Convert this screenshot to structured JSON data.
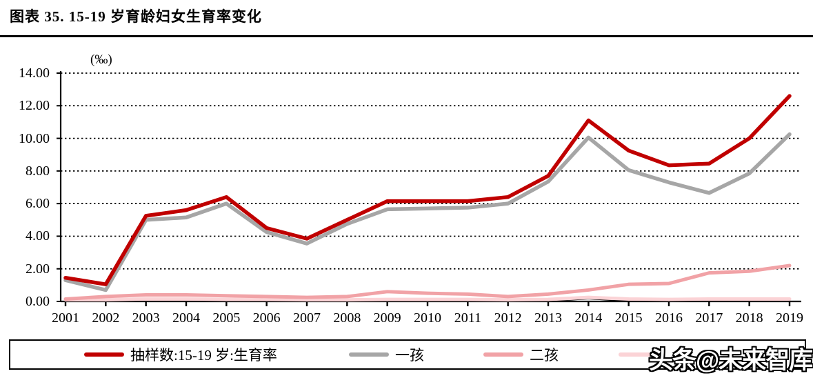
{
  "header": {
    "title": "图表 35. 15-19 岁育龄妇女生育率变化"
  },
  "watermark": {
    "text": "头条@未来智库"
  },
  "chart_data": {
    "type": "line",
    "title": "图表 35. 15-19 岁育龄妇女生育率变化",
    "unit_label": "(‰)",
    "ylim": [
      0,
      14
    ],
    "yticks": [
      0,
      2,
      4,
      6,
      8,
      10,
      12,
      14
    ],
    "ytick_labels": [
      "0.00",
      "2.00",
      "4.00",
      "6.00",
      "8.00",
      "10.00",
      "12.00",
      "14.00"
    ],
    "grid": "horizontal-dotted",
    "legend_position": "bottom-box",
    "x": [
      2001,
      2002,
      2003,
      2004,
      2005,
      2006,
      2007,
      2008,
      2009,
      2010,
      2011,
      2012,
      2013,
      2014,
      2015,
      2016,
      2017,
      2018,
      2019
    ],
    "series": [
      {
        "name": "抽样数:15-19 岁:生育率",
        "color": "#C00000",
        "values": [
          1.45,
          1.05,
          5.25,
          5.6,
          6.4,
          4.5,
          3.85,
          5.0,
          6.15,
          6.15,
          6.15,
          6.4,
          7.7,
          11.1,
          9.25,
          8.35,
          8.45,
          10.0,
          12.6
        ]
      },
      {
        "name": "一孩",
        "color": "#A6A6A6",
        "values": [
          1.3,
          0.7,
          5.0,
          5.15,
          6.0,
          4.25,
          3.55,
          4.75,
          5.65,
          5.7,
          5.75,
          6.0,
          7.35,
          10.05,
          8.05,
          7.3,
          6.65,
          7.85,
          10.25
        ]
      },
      {
        "name": "二孩",
        "color": "#F1A2A6",
        "values": [
          0.15,
          0.3,
          0.4,
          0.4,
          0.35,
          0.3,
          0.25,
          0.3,
          0.6,
          0.5,
          0.45,
          0.3,
          0.45,
          0.7,
          1.05,
          1.1,
          1.75,
          1.85,
          2.2
        ]
      },
      {
        "name": "",
        "label_obscured_by_watermark": true,
        "color": "#FBD3D6",
        "values": [
          0.1,
          0.1,
          0.15,
          0.15,
          0.12,
          0.12,
          0.1,
          0.1,
          0.12,
          0.12,
          0.12,
          0.1,
          0.12,
          0.25,
          0.15,
          0.12,
          0.15,
          0.15,
          0.15
        ]
      },
      {
        "name": "",
        "label_obscured_by_watermark": true,
        "color": "#000000",
        "values": [
          0.02,
          0.02,
          0.05,
          0.1,
          0.05,
          0.02,
          0.02,
          0.02,
          0.02,
          0.02,
          0.02,
          0.02,
          0.02,
          0.18,
          0.03,
          0.02,
          0.02,
          0.02,
          0.02
        ]
      }
    ],
    "legend": [
      {
        "label": "抽样数:15-19 岁:生育率",
        "color": "#C00000"
      },
      {
        "label": "一孩",
        "color": "#A6A6A6"
      },
      {
        "label": "二孩",
        "color": "#F1A2A6"
      },
      {
        "label": "",
        "color": "#FBD3D6",
        "label_obscured_by_watermark": true
      }
    ]
  }
}
